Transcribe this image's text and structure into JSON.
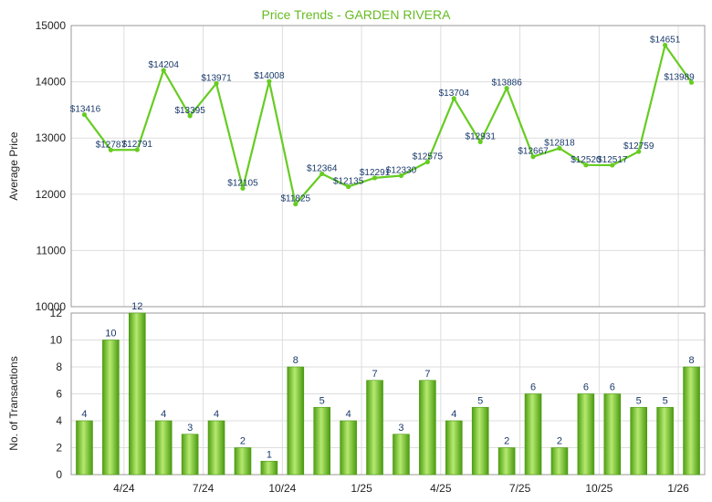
{
  "chart_data": [
    {
      "type": "line",
      "title": "Price Trends - GARDEN RIVERA",
      "ylabel": "Average Price",
      "ylim": [
        10000,
        15000
      ],
      "yticks": [
        10000,
        11000,
        12000,
        13000,
        14000,
        15000
      ],
      "series": [
        {
          "values": [
            13416,
            12787,
            12791,
            14204,
            13395,
            13971,
            12105,
            14008,
            11825,
            12364,
            12135,
            12291,
            12330,
            12575,
            13704,
            12931,
            13886,
            12667,
            12818,
            12520,
            12517,
            12759,
            14651,
            13989
          ],
          "labels": [
            "$13416",
            "$12787",
            "$12791",
            "$14204",
            "$13395",
            "$13971",
            "$12105",
            "$14008",
            "$11825",
            "$12364",
            "$12135",
            "$12291",
            "$12330",
            "$12575",
            "$13704",
            "$12931",
            "$13886",
            "$12667",
            "$12818",
            "$12520",
            "$12517",
            "$12759",
            "$14651",
            "$13989"
          ]
        }
      ],
      "grid": true
    },
    {
      "type": "bar",
      "ylabel": "No. of Transactions",
      "ylim": [
        0,
        12
      ],
      "yticks": [
        0,
        2,
        4,
        6,
        8,
        10,
        12
      ],
      "xticks": [
        "4/24",
        "7/24",
        "10/24",
        "1/25",
        "4/25",
        "7/25",
        "10/25",
        "1/26"
      ],
      "values": [
        4,
        10,
        12,
        4,
        3,
        4,
        2,
        1,
        8,
        5,
        4,
        7,
        3,
        7,
        4,
        5,
        2,
        6,
        2,
        6,
        6,
        5,
        5,
        8
      ],
      "grid": true
    }
  ],
  "colors": {
    "line": "#66cc22",
    "bar_light": "#a8e060",
    "bar_dark": "#4a9a10",
    "title": "#66bb22",
    "label": "#1a3a6b",
    "grid": "#dddddd"
  }
}
